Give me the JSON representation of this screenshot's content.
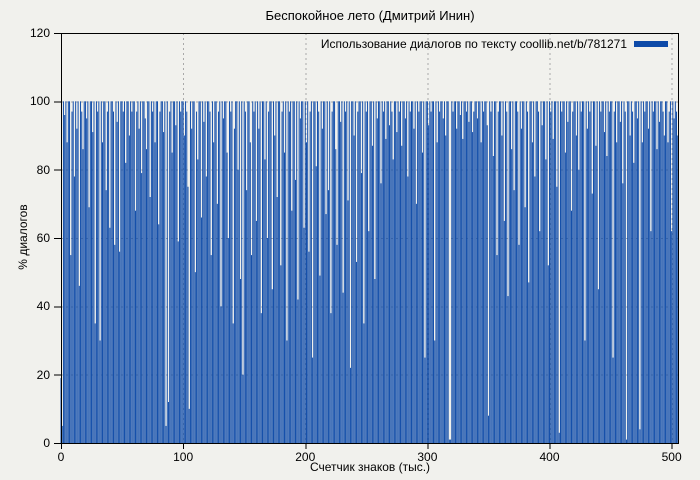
{
  "figure": {
    "background": "#f1f1ed",
    "border_color": "#000000",
    "grid_color": "#a9a9a9"
  },
  "chart_data": {
    "type": "bar",
    "style": "impulses",
    "title": "Беспокойное лето (Дмитрий Инин)",
    "xlabel": "Счетчик знаков (тыс.)",
    "ylabel": "% диалогов",
    "legend": [
      {
        "label": "Использование диалогов по тексту coollib.net/b/781271",
        "color": "#0d4aa8"
      }
    ],
    "legend_position": "top-right",
    "grid": true,
    "xlim": [
      0,
      506
    ],
    "ylim": [
      0,
      120
    ],
    "xticks": [
      0,
      100,
      200,
      300,
      400,
      500
    ],
    "yticks": [
      0,
      20,
      40,
      60,
      80,
      100,
      120
    ],
    "x_step": 1,
    "values": [
      19,
      5,
      100,
      96,
      100,
      88,
      100,
      100,
      55,
      97,
      100,
      78,
      100,
      92,
      100,
      46,
      100,
      97,
      86,
      100,
      100,
      95,
      100,
      69,
      100,
      100,
      91,
      100,
      35,
      100,
      97,
      100,
      30,
      100,
      88,
      100,
      100,
      74,
      97,
      100,
      63,
      100,
      100,
      97,
      58,
      100,
      94,
      100,
      56,
      100,
      100,
      97,
      100,
      82,
      100,
      100,
      90,
      100,
      97,
      100,
      100,
      68,
      97,
      100,
      92,
      100,
      79,
      100,
      100,
      95,
      86,
      100,
      100,
      72,
      100,
      97,
      100,
      88,
      100,
      100,
      64,
      97,
      100,
      100,
      91,
      100,
      5,
      100,
      12,
      97,
      100,
      85,
      100,
      100,
      93,
      100,
      59,
      100,
      97,
      100,
      100,
      90,
      100,
      97,
      75,
      10,
      100,
      92,
      100,
      100,
      50,
      97,
      83,
      100,
      100,
      66,
      100,
      94,
      100,
      78,
      100,
      100,
      97,
      55,
      100,
      88,
      100,
      100,
      70,
      97,
      100,
      40,
      100,
      95,
      100,
      100,
      85,
      60,
      100,
      97,
      100,
      35,
      92,
      100,
      100,
      80,
      100,
      48,
      100,
      20,
      100,
      97,
      74,
      100,
      100,
      88,
      55,
      100,
      97,
      100,
      65,
      100,
      92,
      100,
      38,
      100,
      100,
      83,
      100,
      60,
      97,
      100,
      100,
      45,
      100,
      90,
      100,
      72,
      100,
      100,
      52,
      97,
      100,
      85,
      100,
      30,
      100,
      97,
      100,
      68,
      100,
      100,
      77,
      100,
      42,
      100,
      95,
      100,
      100,
      63,
      100,
      88,
      100,
      56,
      97,
      100,
      25,
      100,
      100,
      81,
      100,
      97,
      49,
      100,
      92,
      100,
      100,
      67,
      100,
      74,
      100,
      38,
      97,
      100,
      100,
      86,
      58,
      100,
      100,
      94,
      100,
      44,
      100,
      97,
      100,
      71,
      100,
      22,
      100,
      100,
      90,
      100,
      53,
      97,
      100,
      100,
      79,
      100,
      35,
      100,
      97,
      100,
      62,
      100,
      100,
      87,
      100,
      48,
      100,
      95,
      100,
      100,
      76,
      100,
      97,
      100,
      89,
      100,
      100,
      93,
      100,
      97,
      83,
      100,
      100,
      91,
      100,
      97,
      100,
      87,
      100,
      100,
      95,
      100,
      78,
      100,
      97,
      100,
      100,
      92,
      100,
      70,
      100,
      97,
      100,
      100,
      85,
      100,
      25,
      100,
      100,
      93,
      100,
      97,
      100,
      100,
      30,
      100,
      88,
      100,
      97,
      100,
      100,
      95,
      100,
      90,
      100,
      100,
      1,
      1,
      100,
      97,
      100,
      100,
      92,
      100,
      100,
      96,
      100,
      89,
      100,
      100,
      97,
      100,
      94,
      100,
      100,
      91,
      97,
      100,
      100,
      95,
      100,
      100,
      88,
      100,
      97,
      100,
      100,
      93,
      8,
      100,
      97,
      100,
      84,
      100,
      100,
      55,
      97,
      100,
      100,
      90,
      100,
      65,
      100,
      97,
      43,
      100,
      100,
      86,
      100,
      74,
      100,
      100,
      97,
      58,
      100,
      92,
      100,
      100,
      69,
      100,
      97,
      47,
      100,
      100,
      88,
      100,
      78,
      100,
      100,
      97,
      62,
      100,
      93,
      100,
      100,
      83,
      100,
      52,
      100,
      97,
      100,
      89,
      100,
      100,
      75,
      100,
      3,
      100,
      97,
      100,
      100,
      85,
      100,
      94,
      100,
      100,
      68,
      97,
      100,
      100,
      90,
      100,
      80,
      100,
      97,
      100,
      100,
      30,
      100,
      92,
      100,
      97,
      100,
      73,
      100,
      100,
      87,
      100,
      45,
      100,
      97,
      100,
      100,
      91,
      100,
      84,
      100,
      97,
      100,
      100,
      25,
      97,
      100,
      88,
      100,
      100,
      94,
      100,
      76,
      100,
      97,
      1,
      100,
      100,
      90,
      100,
      97,
      82,
      100,
      100,
      95,
      100,
      4,
      100,
      88,
      100,
      97,
      100,
      100,
      92,
      100,
      62,
      100,
      97,
      100,
      100,
      86,
      100,
      94,
      100,
      100,
      97,
      90,
      100,
      100,
      88,
      97,
      100,
      62,
      100,
      95,
      100,
      97,
      90
    ]
  }
}
